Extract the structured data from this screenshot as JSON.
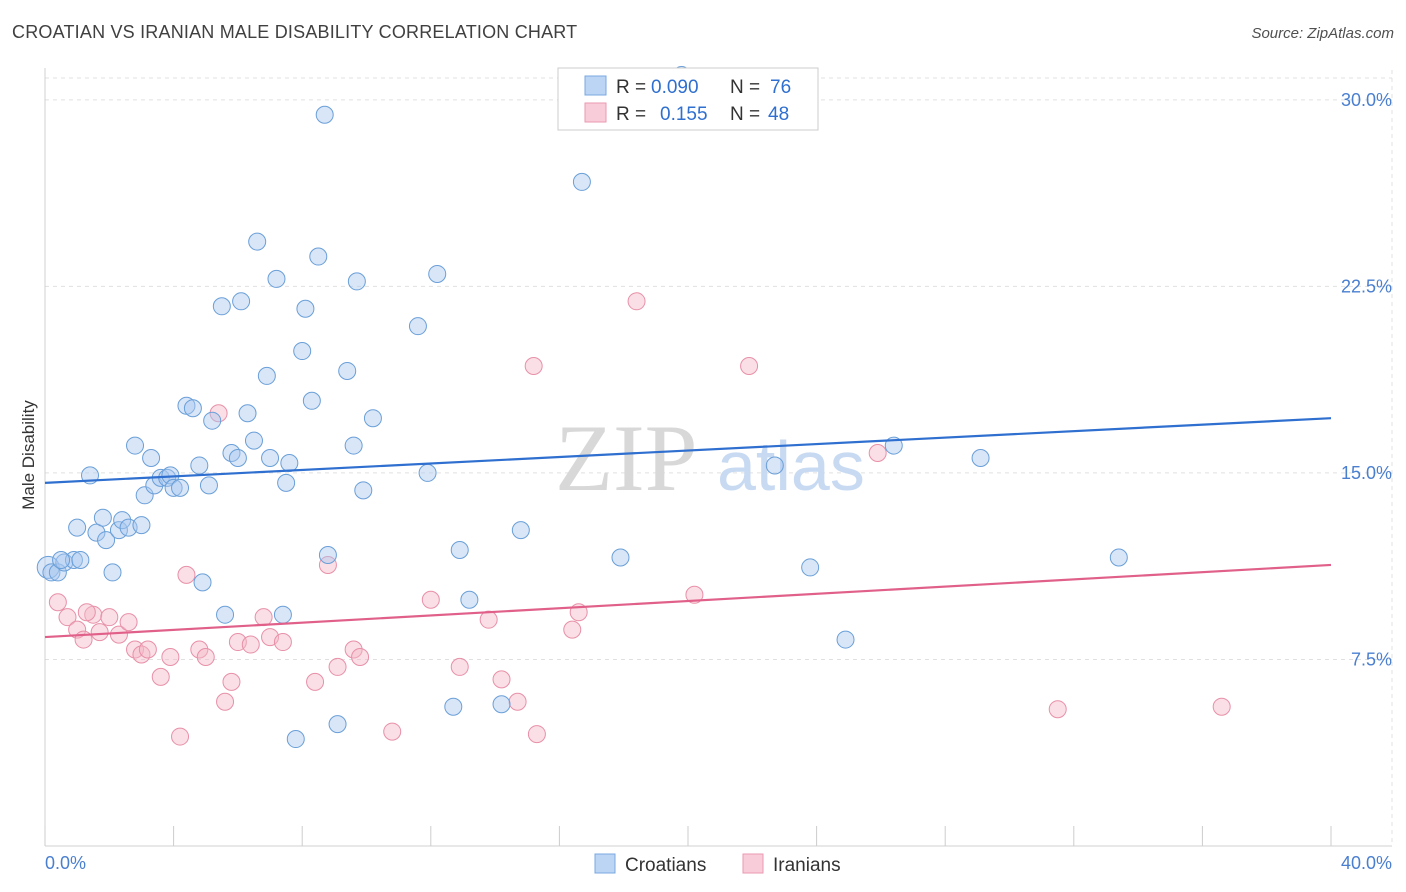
{
  "title": "CROATIAN VS IRANIAN MALE DISABILITY CORRELATION CHART",
  "source": "Source: ZipAtlas.com",
  "watermark": {
    "zip": "ZIP",
    "atlas": "atlas"
  },
  "colors": {
    "croatian_fill": "#a8c8f0",
    "croatian_stroke": "#6a9fd8",
    "croatian_line": "#2f6fcf",
    "iranian_fill": "#f5b8c8",
    "iranian_stroke": "#e890a8",
    "iranian_line": "#e0608a",
    "axis_label": "#4a7fd0",
    "grid": "#e0e0e0"
  },
  "legend_top": {
    "rows": [
      {
        "r_label": "R =",
        "r_value": "0.090",
        "n_label": "N =",
        "n_value": "76"
      },
      {
        "r_label": "R =",
        "r_value": "0.155",
        "n_label": "N =",
        "n_value": "48"
      }
    ]
  },
  "legend_bottom": [
    "Croatians",
    "Iranians"
  ],
  "chart_data": {
    "type": "scatter",
    "title": "CROATIAN VS IRANIAN MALE DISABILITY CORRELATION CHART",
    "xlabel": "",
    "ylabel": "Male Disability",
    "xlim": [
      0,
      40
    ],
    "ylim": [
      0,
      31.2
    ],
    "x_tick_labels": [
      "0.0%",
      "40.0%"
    ],
    "y_ticks": [
      7.5,
      15.0,
      22.5,
      30.0
    ],
    "y_tick_labels": [
      "7.5%",
      "15.0%",
      "22.5%",
      "30.0%"
    ],
    "series": [
      {
        "name": "Croatians",
        "R": 0.09,
        "N": 76,
        "trend": {
          "x": [
            0,
            40
          ],
          "y": [
            14.6,
            17.2
          ]
        },
        "points": [
          {
            "x": 0.1,
            "y": 11.2,
            "r": 11
          },
          {
            "x": 0.2,
            "y": 11.0
          },
          {
            "x": 0.4,
            "y": 11.0
          },
          {
            "x": 0.6,
            "y": 11.4
          },
          {
            "x": 0.9,
            "y": 11.5
          },
          {
            "x": 1.1,
            "y": 11.5
          },
          {
            "x": 0.5,
            "y": 11.5
          },
          {
            "x": 1.0,
            "y": 12.8
          },
          {
            "x": 1.4,
            "y": 14.9
          },
          {
            "x": 1.6,
            "y": 12.6
          },
          {
            "x": 1.8,
            "y": 13.2
          },
          {
            "x": 1.9,
            "y": 12.3
          },
          {
            "x": 2.1,
            "y": 11.0
          },
          {
            "x": 2.3,
            "y": 12.7
          },
          {
            "x": 2.4,
            "y": 13.1
          },
          {
            "x": 2.6,
            "y": 12.8
          },
          {
            "x": 2.8,
            "y": 16.1
          },
          {
            "x": 3.0,
            "y": 12.9
          },
          {
            "x": 3.1,
            "y": 14.1
          },
          {
            "x": 3.3,
            "y": 15.6
          },
          {
            "x": 3.4,
            "y": 14.5
          },
          {
            "x": 3.6,
            "y": 14.8
          },
          {
            "x": 3.8,
            "y": 14.8
          },
          {
            "x": 3.9,
            "y": 14.9
          },
          {
            "x": 4.0,
            "y": 14.4
          },
          {
            "x": 4.2,
            "y": 14.4
          },
          {
            "x": 4.4,
            "y": 17.7
          },
          {
            "x": 4.6,
            "y": 17.6
          },
          {
            "x": 4.8,
            "y": 15.3
          },
          {
            "x": 4.9,
            "y": 10.6
          },
          {
            "x": 5.1,
            "y": 14.5
          },
          {
            "x": 5.2,
            "y": 17.1
          },
          {
            "x": 5.5,
            "y": 21.7
          },
          {
            "x": 5.6,
            "y": 9.3
          },
          {
            "x": 5.8,
            "y": 15.8
          },
          {
            "x": 6.0,
            "y": 15.6
          },
          {
            "x": 6.1,
            "y": 21.9
          },
          {
            "x": 6.3,
            "y": 17.4
          },
          {
            "x": 6.5,
            "y": 16.3
          },
          {
            "x": 6.6,
            "y": 24.3
          },
          {
            "x": 6.9,
            "y": 18.9
          },
          {
            "x": 7.0,
            "y": 15.6
          },
          {
            "x": 7.2,
            "y": 22.8
          },
          {
            "x": 7.4,
            "y": 9.3
          },
          {
            "x": 7.5,
            "y": 14.6
          },
          {
            "x": 7.6,
            "y": 15.4
          },
          {
            "x": 7.8,
            "y": 4.3
          },
          {
            "x": 8.0,
            "y": 19.9
          },
          {
            "x": 8.1,
            "y": 21.6
          },
          {
            "x": 8.3,
            "y": 17.9
          },
          {
            "x": 8.5,
            "y": 23.7
          },
          {
            "x": 8.7,
            "y": 29.4
          },
          {
            "x": 8.8,
            "y": 11.7
          },
          {
            "x": 9.1,
            "y": 4.9
          },
          {
            "x": 9.4,
            "y": 19.1
          },
          {
            "x": 9.6,
            "y": 16.1
          },
          {
            "x": 9.7,
            "y": 22.7
          },
          {
            "x": 9.9,
            "y": 14.3
          },
          {
            "x": 10.2,
            "y": 17.2
          },
          {
            "x": 11.6,
            "y": 20.9
          },
          {
            "x": 11.9,
            "y": 15.0
          },
          {
            "x": 12.2,
            "y": 23.0
          },
          {
            "x": 12.7,
            "y": 5.6
          },
          {
            "x": 12.9,
            "y": 11.9
          },
          {
            "x": 13.2,
            "y": 9.9
          },
          {
            "x": 14.2,
            "y": 5.7
          },
          {
            "x": 14.8,
            "y": 12.7
          },
          {
            "x": 16.7,
            "y": 26.7
          },
          {
            "x": 17.9,
            "y": 11.6
          },
          {
            "x": 19.8,
            "y": 31.0
          },
          {
            "x": 22.7,
            "y": 15.3
          },
          {
            "x": 23.8,
            "y": 11.2
          },
          {
            "x": 24.9,
            "y": 8.3
          },
          {
            "x": 26.4,
            "y": 16.1
          },
          {
            "x": 29.1,
            "y": 15.6
          },
          {
            "x": 33.4,
            "y": 11.6
          }
        ]
      },
      {
        "name": "Iranians",
        "R": 0.155,
        "N": 48,
        "trend": {
          "x": [
            0,
            40
          ],
          "y": [
            8.4,
            11.3
          ]
        },
        "points": [
          {
            "x": 0.4,
            "y": 9.8
          },
          {
            "x": 0.7,
            "y": 9.2
          },
          {
            "x": 1.0,
            "y": 8.7
          },
          {
            "x": 1.2,
            "y": 8.3
          },
          {
            "x": 1.5,
            "y": 9.3
          },
          {
            "x": 1.7,
            "y": 8.6
          },
          {
            "x": 2.0,
            "y": 9.2
          },
          {
            "x": 2.3,
            "y": 8.5
          },
          {
            "x": 2.6,
            "y": 9.0
          },
          {
            "x": 2.8,
            "y": 7.9
          },
          {
            "x": 3.0,
            "y": 7.7
          },
          {
            "x": 3.2,
            "y": 7.9
          },
          {
            "x": 3.6,
            "y": 6.8
          },
          {
            "x": 3.9,
            "y": 7.6
          },
          {
            "x": 4.2,
            "y": 4.4
          },
          {
            "x": 4.4,
            "y": 10.9
          },
          {
            "x": 4.8,
            "y": 7.9
          },
          {
            "x": 5.0,
            "y": 7.6
          },
          {
            "x": 5.4,
            "y": 17.4
          },
          {
            "x": 5.6,
            "y": 5.8
          },
          {
            "x": 5.8,
            "y": 6.6
          },
          {
            "x": 6.0,
            "y": 8.2
          },
          {
            "x": 6.4,
            "y": 8.1
          },
          {
            "x": 6.8,
            "y": 9.2
          },
          {
            "x": 7.0,
            "y": 8.4
          },
          {
            "x": 7.4,
            "y": 8.2
          },
          {
            "x": 8.4,
            "y": 6.6
          },
          {
            "x": 8.8,
            "y": 11.3
          },
          {
            "x": 9.1,
            "y": 7.2
          },
          {
            "x": 9.6,
            "y": 7.9
          },
          {
            "x": 9.8,
            "y": 7.6
          },
          {
            "x": 10.8,
            "y": 4.6
          },
          {
            "x": 12.0,
            "y": 9.9
          },
          {
            "x": 12.9,
            "y": 7.2
          },
          {
            "x": 13.8,
            "y": 9.1
          },
          {
            "x": 14.2,
            "y": 6.7
          },
          {
            "x": 14.7,
            "y": 5.8
          },
          {
            "x": 15.2,
            "y": 19.3
          },
          {
            "x": 15.3,
            "y": 4.5
          },
          {
            "x": 16.4,
            "y": 8.7
          },
          {
            "x": 16.6,
            "y": 9.4
          },
          {
            "x": 18.4,
            "y": 21.9
          },
          {
            "x": 20.2,
            "y": 10.1
          },
          {
            "x": 21.9,
            "y": 19.3
          },
          {
            "x": 25.9,
            "y": 15.8
          },
          {
            "x": 31.5,
            "y": 5.5
          },
          {
            "x": 36.6,
            "y": 5.6
          },
          {
            "x": 1.3,
            "y": 9.4
          }
        ]
      }
    ]
  }
}
